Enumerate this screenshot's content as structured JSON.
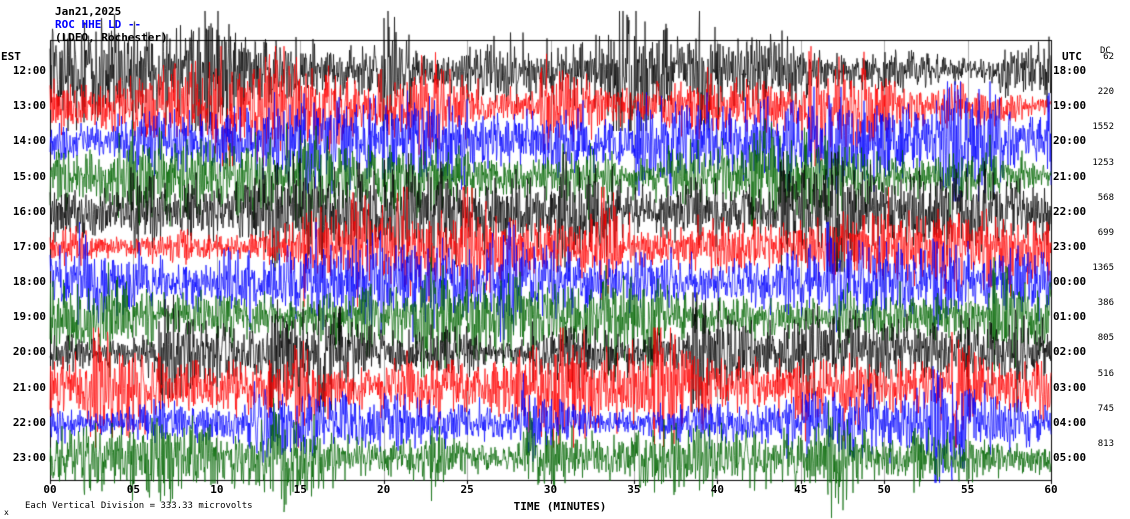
{
  "header": {
    "date": "Jan21,2025",
    "station_line": "ROC HHE LD --",
    "location_line": "(LDEO, Rochester)"
  },
  "axes": {
    "left_time_label": "EST",
    "right_time_label": "UTC",
    "dc_column_label": "DC",
    "x_axis_label": "TIME (MINUTES)"
  },
  "footer": {
    "scale_note": "Each Vertical Division = 333.33 microvolts",
    "corner_mark": "x"
  },
  "chart_data": {
    "type": "line",
    "subtype": "seismogram-helicorder",
    "station": "ROC HHE LD",
    "network_note": "(LDEO, Rochester)",
    "date": "Jan21,2025",
    "xlabel": "TIME (MINUTES)",
    "x_range_minutes": [
      0,
      60
    ],
    "x_ticks": [
      "00",
      "05",
      "10",
      "15",
      "20",
      "25",
      "30",
      "35",
      "40",
      "45",
      "50",
      "55",
      "60"
    ],
    "minutes_per_row": 60,
    "grid": "vertical gridlines every 5 minutes, outer box border",
    "trace_color_cycle": [
      "#000000",
      "#ff0000",
      "#0000ff",
      "#006600"
    ],
    "vertical_division_microvolts": 333.33,
    "rows": [
      {
        "est": "12:00",
        "utc": "18:00",
        "dc": 62,
        "color": "#000000"
      },
      {
        "est": "13:00",
        "utc": "19:00",
        "dc": 220,
        "color": "#ff0000"
      },
      {
        "est": "14:00",
        "utc": "20:00",
        "dc": 1552,
        "color": "#0000ff"
      },
      {
        "est": "15:00",
        "utc": "21:00",
        "dc": 1253,
        "color": "#006600"
      },
      {
        "est": "16:00",
        "utc": "22:00",
        "dc": 568,
        "color": "#000000"
      },
      {
        "est": "17:00",
        "utc": "23:00",
        "dc": 699,
        "color": "#ff0000"
      },
      {
        "est": "18:00",
        "utc": "00:00",
        "dc": 1365,
        "color": "#0000ff"
      },
      {
        "est": "19:00",
        "utc": "01:00",
        "dc": 386,
        "color": "#006600"
      },
      {
        "est": "20:00",
        "utc": "02:00",
        "dc": 805,
        "color": "#000000"
      },
      {
        "est": "21:00",
        "utc": "03:00",
        "dc": 516,
        "color": "#ff0000"
      },
      {
        "est": "22:00",
        "utc": "04:00",
        "dc": 745,
        "color": "#0000ff"
      },
      {
        "est": "23:00",
        "utc": "05:00",
        "dc": 813,
        "color": "#006600"
      }
    ],
    "trace_note": "continuous high-amplitude broadband noise traces spanning full hour; individual sample amplitudes not resolvable from image"
  }
}
